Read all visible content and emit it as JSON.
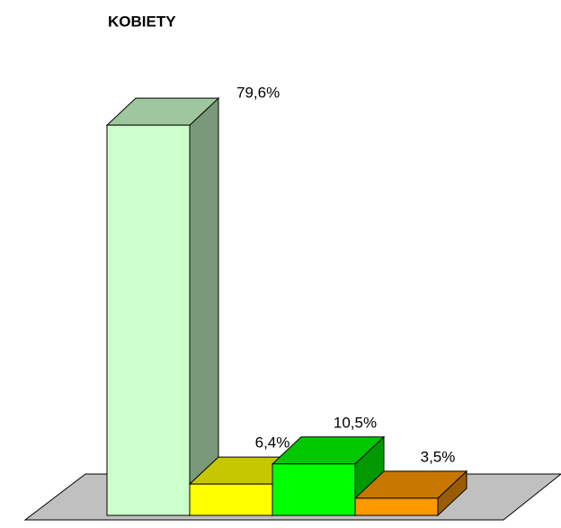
{
  "chart_data": {
    "type": "bar3d",
    "title": "KOBIETY",
    "categories": [
      null,
      null,
      null,
      null
    ],
    "values": [
      79.6,
      6.4,
      10.5,
      3.5
    ],
    "value_labels": [
      "79,6%",
      "6,4%",
      "10,5%",
      "3,5%"
    ],
    "colors": [
      "#ccffcc",
      "#ffff00",
      "#00ff00",
      "#ff9900"
    ]
  }
}
